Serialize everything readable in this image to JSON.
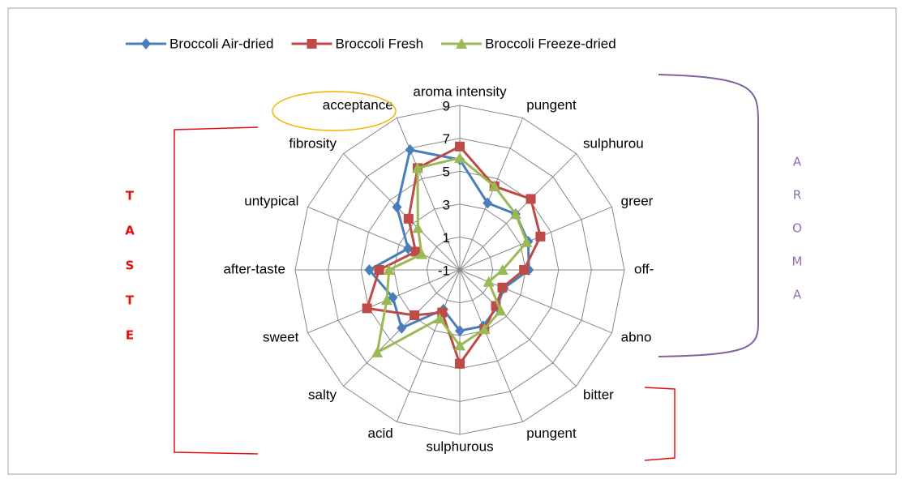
{
  "chart_data": {
    "type": "radar",
    "categories": [
      "aroma intensity",
      "pungent",
      "sulphurou",
      "greer",
      "off-",
      "abno",
      "bitter",
      "pungent",
      "sulphurous",
      "acid",
      "salty",
      "sweet",
      "after-taste",
      "untypical",
      "fibrosity",
      "acceptance"
    ],
    "series": [
      {
        "name": "Broccoli Air-dried",
        "color": "#4a7ebb",
        "marker": "diamond",
        "values": [
          5.7,
          3.4,
          3.8,
          3.5,
          3.2,
          1.9,
          2.2,
          2.7,
          2.7,
          1.6,
          4.0,
          3.4,
          4.5,
          2.4,
          4.4,
          6.9
        ]
      },
      {
        "name": "Broccoli Fresh",
        "color": "#be4b48",
        "marker": "square",
        "values": [
          6.5,
          4.5,
          5.1,
          4.3,
          2.9,
          1.8,
          2.1,
          2.9,
          4.7,
          1.8,
          2.9,
          5.1,
          3.9,
          1.9,
          3.4,
          5.7
        ]
      },
      {
        "name": "Broccoli Freeze-dried",
        "color": "#98b954",
        "marker": "triangle",
        "values": [
          5.8,
          4.5,
          3.8,
          3.4,
          1.6,
          0.9,
          2.5,
          2.9,
          3.6,
          2.2,
          6.1,
          3.8,
          3.3,
          1.5,
          2.6,
          5.7
        ]
      }
    ],
    "ylim": [
      -1,
      9
    ],
    "yticks": [
      -1,
      1,
      3,
      5,
      7,
      9
    ],
    "grid": true,
    "legend": "top",
    "annotations": {
      "taste": [
        "T",
        "A",
        "S",
        "T",
        "E"
      ],
      "aroma": [
        "A",
        "R",
        "O",
        "M",
        "A"
      ]
    }
  }
}
